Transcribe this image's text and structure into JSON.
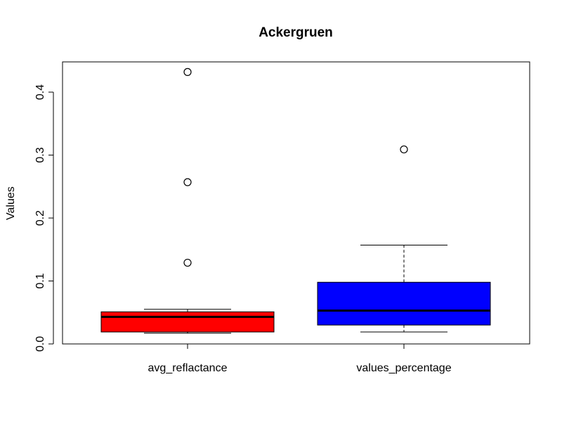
{
  "chart_data": {
    "type": "boxplot",
    "title": "Ackergruen",
    "xlabel": "",
    "ylabel": "Values",
    "ylim": [
      0,
      0.44
    ],
    "yticks": [
      0.0,
      0.1,
      0.2,
      0.3,
      0.4
    ],
    "ytick_labels": [
      "0.0",
      "0.1",
      "0.2",
      "0.3",
      "0.4"
    ],
    "grid": false,
    "categories": [
      "avg_reflactance",
      "values_percentage"
    ],
    "boxes": [
      {
        "category": "avg_reflactance",
        "color": "#ff0000",
        "whisker_low": 0.017,
        "q1": 0.019,
        "median": 0.043,
        "q3": 0.051,
        "whisker_high": 0.055,
        "outliers": [
          0.129,
          0.257,
          0.432
        ]
      },
      {
        "category": "values_percentage",
        "color": "#0000ff",
        "whisker_low": 0.019,
        "q1": 0.03,
        "median": 0.053,
        "q3": 0.098,
        "whisker_high": 0.157,
        "outliers": [
          0.309
        ]
      }
    ]
  }
}
